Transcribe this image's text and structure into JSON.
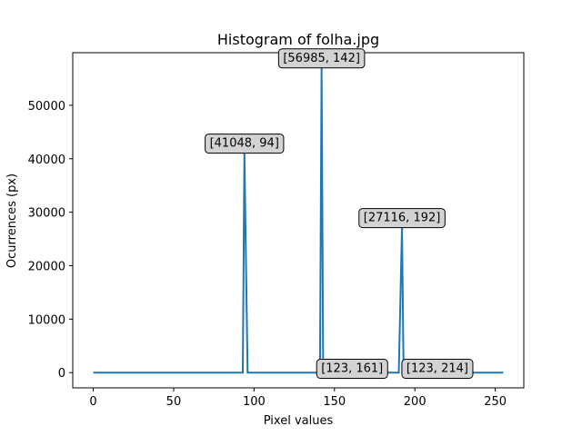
{
  "chart_data": {
    "type": "line",
    "title": "Histogram of folha.jpg",
    "xlabel": "Pixel values",
    "ylabel": "Ocurrences (px)",
    "xlim": [
      -12.75,
      267.75
    ],
    "ylim": [
      -2849,
      59834
    ],
    "xticks": [
      0,
      50,
      100,
      150,
      200,
      250
    ],
    "yticks": [
      0,
      10000,
      20000,
      30000,
      40000,
      50000
    ],
    "grid": false,
    "line_color": "#1f77b4",
    "series": [
      {
        "x": [
          0,
          93,
          94,
          95,
          96,
          141,
          142,
          143,
          190,
          191,
          192,
          193,
          255
        ],
        "y": [
          0,
          0,
          41048,
          20500,
          0,
          0,
          56985,
          0,
          0,
          13500,
          27116,
          0,
          0
        ]
      }
    ],
    "annotations": [
      {
        "text": "[41048, 94]",
        "x": 94,
        "y": 41048
      },
      {
        "text": "[56985, 142]",
        "x": 142,
        "y": 56985
      },
      {
        "text": "[27116, 192]",
        "x": 192,
        "y": 27116
      },
      {
        "text": "[123, 161]",
        "x": 161,
        "y": 123
      },
      {
        "text": "[123, 214]",
        "x": 214,
        "y": 123
      }
    ]
  }
}
